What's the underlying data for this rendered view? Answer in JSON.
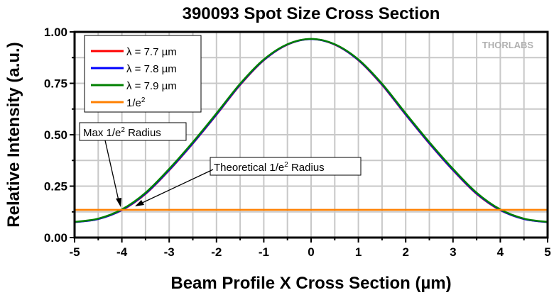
{
  "chart_data": {
    "type": "line",
    "title": "390093 Spot Size Cross Section",
    "xlabel": "Beam Profile X Cross Section (µm)",
    "ylabel": "Relative Intensity (a.u.)",
    "xlim": [
      -5,
      5
    ],
    "ylim": [
      0,
      1
    ],
    "xticks": [
      "-5",
      "-4",
      "-3",
      "-2",
      "-1",
      "0",
      "1",
      "2",
      "3",
      "4",
      "5"
    ],
    "yticks": [
      "0.00",
      "0.25",
      "0.50",
      "0.75",
      "1.00"
    ],
    "grid": true,
    "legend_position": "top-left",
    "x": [
      -5,
      -4.5,
      -4,
      -3.5,
      -3,
      -2.5,
      -2,
      -1.5,
      -1,
      -0.5,
      0,
      0.5,
      1,
      1.5,
      2,
      2.5,
      3,
      3.5,
      4,
      4.5,
      5
    ],
    "series": [
      {
        "name": "λ = 7.7  µm",
        "color": "#ff0000",
        "values": [
          0.075,
          0.09,
          0.133,
          0.212,
          0.327,
          0.457,
          0.597,
          0.742,
          0.862,
          0.938,
          0.965,
          0.938,
          0.862,
          0.742,
          0.597,
          0.457,
          0.327,
          0.212,
          0.133,
          0.09,
          0.075
        ]
      },
      {
        "name": "λ = 7.8  µm",
        "color": "#0000ff",
        "values": [
          0.075,
          0.09,
          0.134,
          0.214,
          0.329,
          0.459,
          0.599,
          0.744,
          0.863,
          0.939,
          0.965,
          0.939,
          0.863,
          0.744,
          0.599,
          0.459,
          0.329,
          0.214,
          0.134,
          0.09,
          0.075
        ]
      },
      {
        "name": "λ = 7.9  µm",
        "color": "#008000",
        "values": [
          0.076,
          0.092,
          0.137,
          0.218,
          0.334,
          0.464,
          0.604,
          0.748,
          0.866,
          0.94,
          0.966,
          0.94,
          0.866,
          0.748,
          0.604,
          0.464,
          0.334,
          0.218,
          0.137,
          0.092,
          0.076
        ]
      },
      {
        "name": "1/e",
        "superscript": "2",
        "color": "#ff8000",
        "constant": 0.135
      }
    ],
    "annotations": [
      {
        "text": "Max 1/e",
        "sup": "2",
        "text_after": " Radius",
        "points_to": [
          -4.0,
          0.135
        ]
      },
      {
        "text": "Theoretical 1/e",
        "sup": "2",
        "text_after": " Radius",
        "points_to": [
          -3.7,
          0.135
        ]
      }
    ]
  },
  "logo": "THORLABS"
}
